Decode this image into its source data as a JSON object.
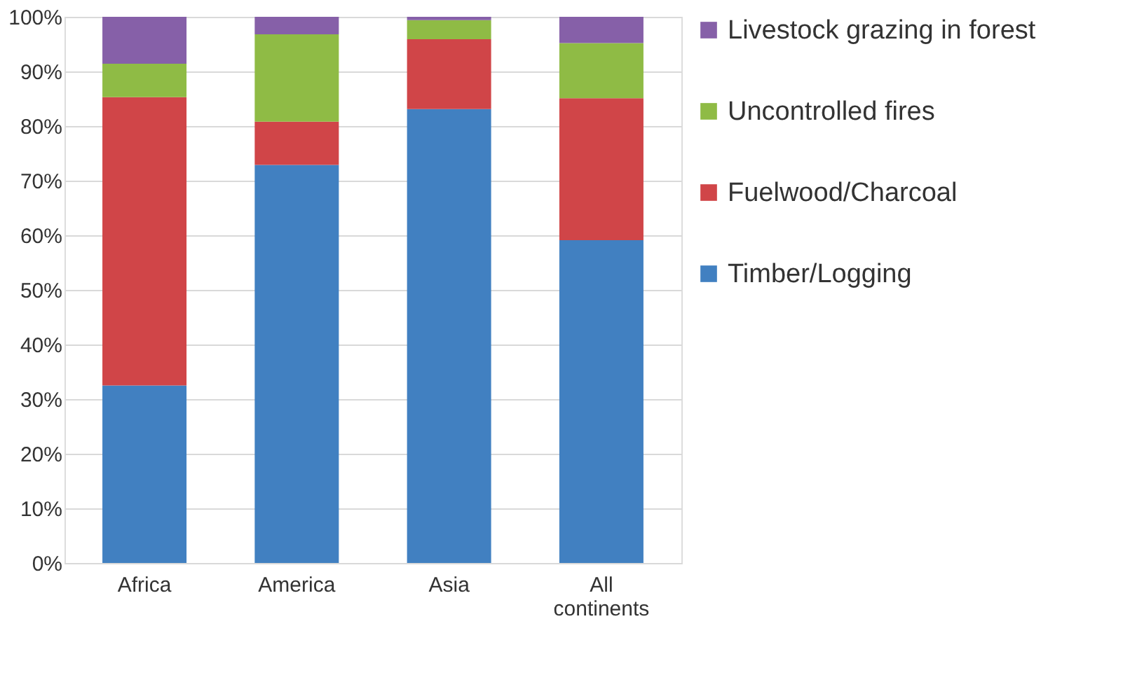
{
  "chart_data": {
    "type": "bar",
    "stacked": true,
    "categories": [
      "Africa",
      "America",
      "Asia",
      "All continents"
    ],
    "series": [
      {
        "name": "Timber/Logging",
        "color": "#4180c1",
        "values": [
          32.5,
          72.9,
          83.1,
          59.1
        ]
      },
      {
        "name": "Fuelwood/Charcoal",
        "color": "#d04548",
        "values": [
          52.8,
          7.9,
          12.8,
          26.0
        ]
      },
      {
        "name": "Uncontrolled fires",
        "color": "#8fbb45",
        "values": [
          6.1,
          16.0,
          3.5,
          10.1
        ]
      },
      {
        "name": "Livestock grazing in forest",
        "color": "#8660a8",
        "values": [
          8.6,
          3.2,
          0.6,
          4.8
        ]
      }
    ],
    "ylim": [
      0,
      100
    ],
    "yticks": [
      {
        "value": 0,
        "label": "0%"
      },
      {
        "value": 10,
        "label": "10%"
      },
      {
        "value": 20,
        "label": "20%"
      },
      {
        "value": 30,
        "label": "30%"
      },
      {
        "value": 40,
        "label": "40%"
      },
      {
        "value": 50,
        "label": "50%"
      },
      {
        "value": 60,
        "label": "60%"
      },
      {
        "value": 70,
        "label": "70%"
      },
      {
        "value": 80,
        "label": "80%"
      },
      {
        "value": 90,
        "label": "90%"
      },
      {
        "value": 100,
        "label": "100%"
      }
    ],
    "grid": "y",
    "legend": "right"
  }
}
